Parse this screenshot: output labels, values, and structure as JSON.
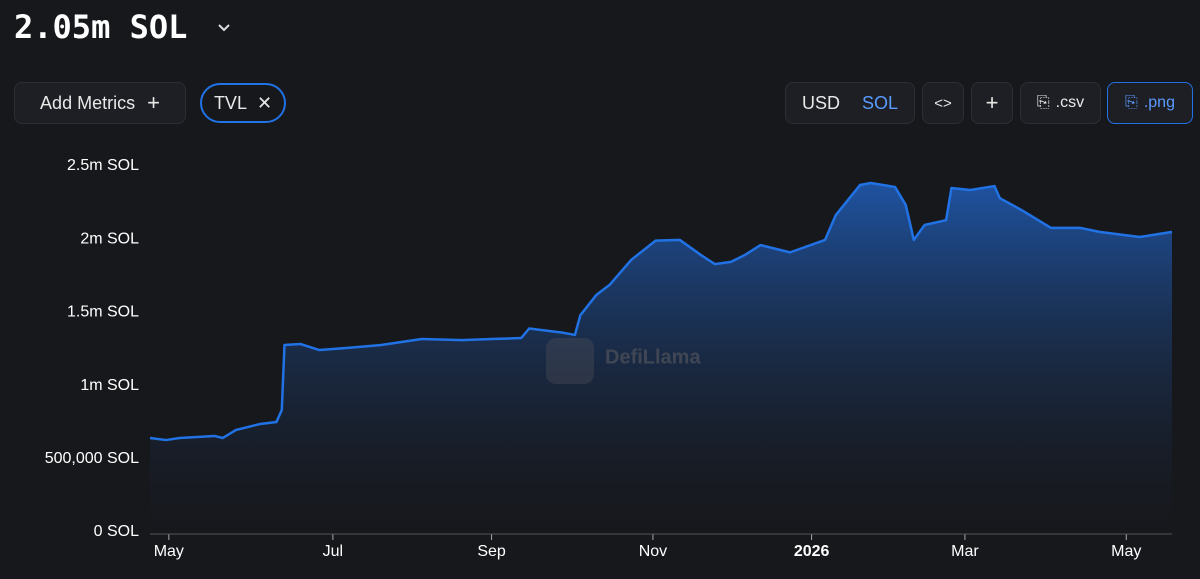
{
  "header": {
    "title": "2.05m SOL"
  },
  "toolbar": {
    "add_metrics": "Add Metrics",
    "metric_chip": "TVL",
    "currency_usd": "USD",
    "currency_sol": "SOL",
    "csv": ".csv",
    "png": ".png"
  },
  "watermark": "DefiLlama",
  "chart_data": {
    "type": "area",
    "series": [
      {
        "name": "TVL",
        "color": "#2172e5",
        "x": [
          0,
          6,
          11,
          24,
          27,
          32,
          41,
          47,
          49,
          50,
          56,
          63,
          73,
          86,
          101,
          116,
          127,
          138,
          141,
          153,
          158,
          160,
          166,
          171,
          179,
          188,
          197,
          205,
          210,
          216,
          221,
          227,
          238,
          251,
          255,
          264,
          268,
          277,
          281,
          284,
          288,
          296,
          298,
          305,
          314,
          316,
          324,
          335,
          346,
          353,
          368,
          380
        ],
        "values": [
          642000,
          628000,
          642000,
          656000,
          642000,
          697000,
          738000,
          751000,
          833000,
          1277000,
          1284000,
          1243000,
          1257000,
          1277000,
          1318000,
          1311000,
          1318000,
          1325000,
          1390000,
          1363000,
          1346000,
          1480000,
          1620000,
          1690000,
          1860000,
          1990000,
          1995000,
          1890000,
          1830000,
          1845000,
          1890000,
          1960000,
          1910000,
          1995000,
          2165000,
          2370000,
          2384000,
          2357000,
          2234000,
          1995000,
          2097000,
          2130000,
          2350000,
          2336000,
          2363000,
          2280000,
          2200000,
          2077000,
          2077000,
          2050000,
          2015000,
          2050000
        ]
      }
    ],
    "xlim": [
      0,
      380
    ],
    "xticks": [
      {
        "value": 7,
        "label": "May"
      },
      {
        "value": 68,
        "label": "Jul"
      },
      {
        "value": 127,
        "label": "Sep"
      },
      {
        "value": 187,
        "label": "Nov"
      },
      {
        "value": 246,
        "label": "2026"
      },
      {
        "value": 303,
        "label": "Mar"
      },
      {
        "value": 363,
        "label": "May"
      }
    ],
    "ylim": [
      0,
      2500000
    ],
    "yticks": [
      {
        "value": 0,
        "label": "0 SOL"
      },
      {
        "value": 500000,
        "label": "500,000 SOL"
      },
      {
        "value": 1000000,
        "label": "1m SOL"
      },
      {
        "value": 1500000,
        "label": "1.5m SOL"
      },
      {
        "value": 2000000,
        "label": "2m SOL"
      },
      {
        "value": 2500000,
        "label": "2.5m SOL"
      }
    ],
    "grid": false
  }
}
